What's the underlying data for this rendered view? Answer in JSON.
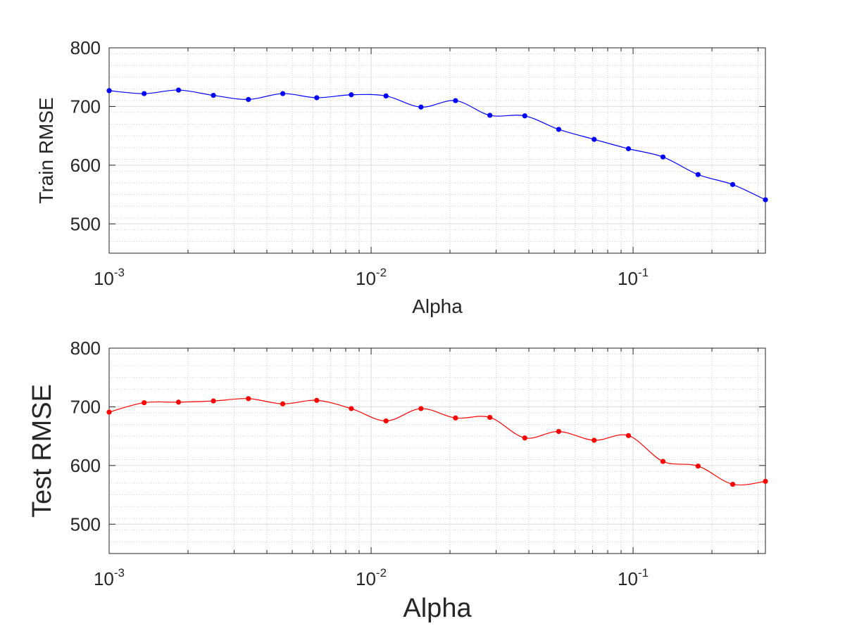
{
  "chart_data": [
    {
      "type": "line",
      "xlabel": "Alpha",
      "ylabel": "Train RMSE",
      "xscale": "log",
      "xlim": [
        0.001,
        0.32
      ],
      "ylim": [
        450,
        800
      ],
      "grid": true,
      "minor_grid": true,
      "line_color": "#0000ff",
      "x_tick_labels": [
        {
          "base": "10",
          "exp": "-3"
        },
        {
          "base": "10",
          "exp": "-2"
        },
        {
          "base": "10",
          "exp": "-1"
        }
      ],
      "y_tick_labels": [
        "500",
        "600",
        "700",
        "800"
      ],
      "series": [
        {
          "x": [
            0.001,
            0.00136,
            0.00184,
            0.0025,
            0.0034,
            0.0046,
            0.0062,
            0.0084,
            0.0114,
            0.0155,
            0.021,
            0.0284,
            0.0386,
            0.052,
            0.071,
            0.096,
            0.13,
            0.177,
            0.24,
            0.32
          ],
          "values": [
            727,
            722,
            728,
            719,
            712,
            722,
            715,
            720,
            718,
            699,
            710,
            685,
            684,
            661,
            644,
            628,
            614,
            584,
            567,
            541
          ]
        }
      ]
    },
    {
      "type": "line",
      "xlabel": "Alpha",
      "ylabel": "Test RMSE",
      "xscale": "log",
      "xlim": [
        0.001,
        0.32
      ],
      "ylim": [
        450,
        800
      ],
      "grid": true,
      "minor_grid": true,
      "line_color": "#ff0000",
      "x_tick_labels": [
        {
          "base": "10",
          "exp": "-3"
        },
        {
          "base": "10",
          "exp": "-2"
        },
        {
          "base": "10",
          "exp": "-1"
        }
      ],
      "y_tick_labels": [
        "500",
        "600",
        "700",
        "800"
      ],
      "series": [
        {
          "x": [
            0.001,
            0.00136,
            0.00184,
            0.0025,
            0.0034,
            0.0046,
            0.0062,
            0.0084,
            0.0114,
            0.0155,
            0.021,
            0.0284,
            0.0386,
            0.052,
            0.071,
            0.096,
            0.13,
            0.177,
            0.24,
            0.32
          ],
          "values": [
            691,
            707,
            708,
            710,
            714,
            705,
            711,
            697,
            676,
            697,
            681,
            682,
            647,
            658,
            643,
            651,
            607,
            599,
            568,
            573
          ]
        }
      ]
    }
  ]
}
